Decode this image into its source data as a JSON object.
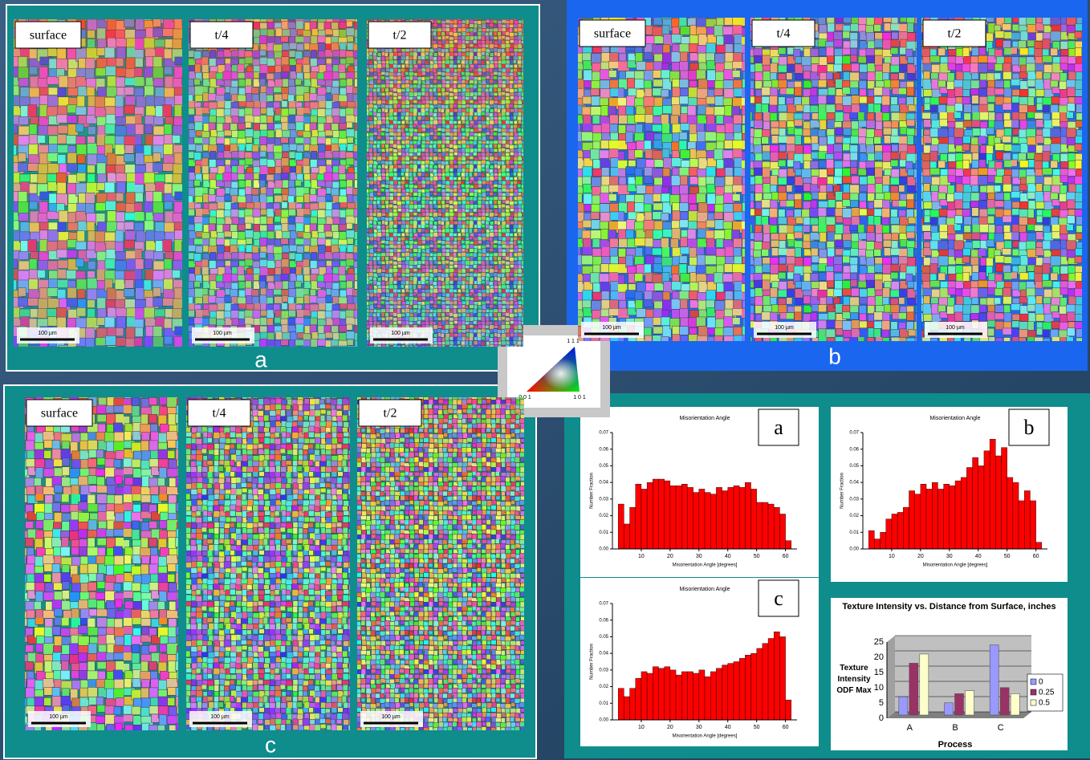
{
  "panels": [
    {
      "letter": "a",
      "maps": [
        {
          "label": "surface",
          "scale": "100 µm"
        },
        {
          "label": "t/4",
          "scale": "100 µm"
        },
        {
          "label": "t/2",
          "scale": "100 µm"
        }
      ]
    },
    {
      "letter": "b",
      "maps": [
        {
          "label": "surface",
          "scale": "100 µm"
        },
        {
          "label": "t/4",
          "scale": "100 µm"
        },
        {
          "label": "t/2",
          "scale": "100 µm"
        }
      ]
    },
    {
      "letter": "c",
      "maps": [
        {
          "label": "surface",
          "scale": "100 µm"
        },
        {
          "label": "t/4",
          "scale": "100 µm"
        },
        {
          "label": "t/2",
          "scale": "100 µm"
        }
      ]
    }
  ],
  "ipf_legend": {
    "top": "1 1 1",
    "left": "0 0 1",
    "right": "1 0 1"
  },
  "chart_data": [
    {
      "type": "histogram",
      "title": "Misorientation Angle",
      "label": "a",
      "x_label": "Misorientation Angle [degrees]",
      "y_label": "Number Fraction",
      "color": "#ff0000",
      "bins": [
        2,
        4,
        6,
        8,
        10,
        12,
        14,
        16,
        18,
        20,
        22,
        24,
        26,
        28,
        30,
        32,
        34,
        36,
        38,
        40,
        42,
        44,
        46,
        48,
        50,
        52,
        54,
        56,
        58,
        60,
        62
      ],
      "values": [
        0.027,
        0.015,
        0.025,
        0.039,
        0.036,
        0.04,
        0.042,
        0.042,
        0.041,
        0.038,
        0.038,
        0.039,
        0.037,
        0.034,
        0.036,
        0.034,
        0.033,
        0.037,
        0.035,
        0.037,
        0.038,
        0.037,
        0.04,
        0.036,
        0.028,
        0.028,
        0.027,
        0.025,
        0.021,
        0.005
      ],
      "xlim": [
        0,
        64
      ],
      "xticks": [
        10,
        20,
        30,
        40,
        50,
        60
      ],
      "ylim": [
        0,
        0.07
      ],
      "yticks": [
        {
          "value": 0,
          "label": "0.00"
        },
        {
          "value": 0.01,
          "label": "0.01"
        },
        {
          "value": 0.02,
          "label": "0.02"
        },
        {
          "value": 0.03,
          "label": "0.03"
        },
        {
          "value": 0.04,
          "label": "0.04"
        },
        {
          "value": 0.05,
          "label": "0.05"
        },
        {
          "value": 0.06,
          "label": "0.06"
        },
        {
          "value": 0.07,
          "label": "0.07"
        }
      ]
    },
    {
      "type": "histogram",
      "title": "Misorientation Angle",
      "label": "b",
      "x_label": "Misorientation Angle [degrees]",
      "y_label": "Number Fraction",
      "color": "#ff0000",
      "bins": [
        2,
        4,
        6,
        8,
        10,
        12,
        14,
        16,
        18,
        20,
        22,
        24,
        26,
        28,
        30,
        32,
        34,
        36,
        38,
        40,
        42,
        44,
        46,
        48,
        50,
        52,
        54,
        56,
        58,
        60,
        62
      ],
      "values": [
        0.011,
        0.006,
        0.01,
        0.018,
        0.021,
        0.022,
        0.025,
        0.035,
        0.033,
        0.039,
        0.036,
        0.04,
        0.036,
        0.039,
        0.038,
        0.041,
        0.043,
        0.049,
        0.055,
        0.05,
        0.059,
        0.066,
        0.056,
        0.061,
        0.043,
        0.04,
        0.029,
        0.035,
        0.029,
        0.004
      ],
      "xlim": [
        0,
        64
      ],
      "xticks": [
        10,
        20,
        30,
        40,
        50,
        60
      ],
      "ylim": [
        0,
        0.07
      ],
      "yticks": [
        {
          "value": 0,
          "label": "0.00"
        },
        {
          "value": 0.01,
          "label": "0.01"
        },
        {
          "value": 0.02,
          "label": "0.02"
        },
        {
          "value": 0.03,
          "label": "0.03"
        },
        {
          "value": 0.04,
          "label": "0.04"
        },
        {
          "value": 0.05,
          "label": "0.05"
        },
        {
          "value": 0.06,
          "label": "0.06"
        },
        {
          "value": 0.07,
          "label": "0.07"
        }
      ]
    },
    {
      "type": "histogram",
      "title": "Misorientation Angle",
      "label": "c",
      "x_label": "Misorientation Angle [degrees]",
      "y_label": "Number Fraction",
      "color": "#ff0000",
      "bins": [
        2,
        4,
        6,
        8,
        10,
        12,
        14,
        16,
        18,
        20,
        22,
        24,
        26,
        28,
        30,
        32,
        34,
        36,
        38,
        40,
        42,
        44,
        46,
        48,
        50,
        52,
        54,
        56,
        58,
        60,
        62
      ],
      "values": [
        0.019,
        0.014,
        0.019,
        0.025,
        0.029,
        0.028,
        0.032,
        0.031,
        0.032,
        0.03,
        0.027,
        0.029,
        0.029,
        0.028,
        0.03,
        0.026,
        0.029,
        0.031,
        0.033,
        0.034,
        0.035,
        0.037,
        0.039,
        0.04,
        0.043,
        0.046,
        0.049,
        0.053,
        0.05,
        0.012
      ],
      "xlim": [
        0,
        64
      ],
      "xticks": [
        10,
        20,
        30,
        40,
        50,
        60
      ],
      "ylim": [
        0,
        0.07
      ],
      "yticks": [
        {
          "value": 0,
          "label": "0.00"
        },
        {
          "value": 0.01,
          "label": "0.01"
        },
        {
          "value": 0.02,
          "label": "0.02"
        },
        {
          "value": 0.03,
          "label": "0.03"
        },
        {
          "value": 0.04,
          "label": "0.04"
        },
        {
          "value": 0.05,
          "label": "0.05"
        },
        {
          "value": 0.06,
          "label": "0.06"
        },
        {
          "value": 0.07,
          "label": "0.07"
        }
      ]
    },
    {
      "type": "bar",
      "title": "Texture Intensity vs. Distance from Surface, inches",
      "y_label": "Texture Intensity ODF Max",
      "x_label": "Process",
      "categories": [
        "A",
        "B",
        "C"
      ],
      "series": [
        {
          "name": "0",
          "color": "#9999ff",
          "values": [
            6,
            4,
            23
          ]
        },
        {
          "name": "0.25",
          "color": "#993366",
          "values": [
            17,
            7,
            9
          ]
        },
        {
          "name": "0.5",
          "color": "#ffffcc",
          "values": [
            20,
            8,
            7
          ]
        }
      ],
      "ylim": [
        0,
        25
      ],
      "yticks": [
        0,
        5,
        10,
        15,
        20,
        25
      ],
      "grid": true,
      "legend": "right"
    }
  ]
}
